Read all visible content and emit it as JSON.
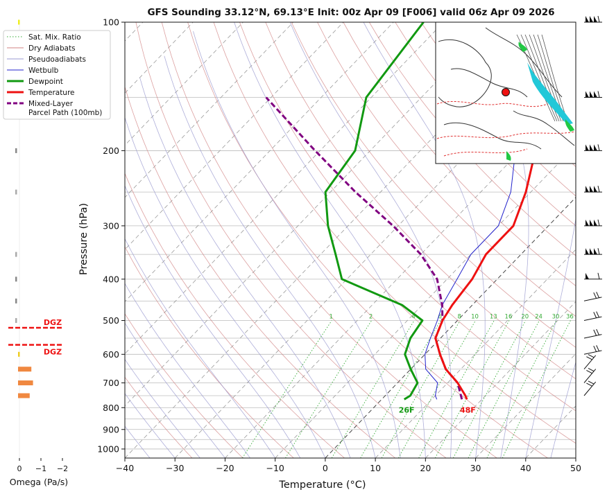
{
  "title": "GFS Sounding 33.12°N, 69.13°E Init: 00z Apr 09 [F006] valid 06z Apr 09 2026",
  "legend": {
    "sat_mix": "Sat. Mix. Ratio",
    "dry": "Dry Adiabats",
    "pseudo": "Pseudoadiabats",
    "wetbulb": "Wetbulb",
    "dewpoint": "Dewpoint",
    "temperature": "Temperature",
    "parcel_1": "Mixed-Layer",
    "parcel_2": "Parcel Path (100mb)"
  },
  "colors": {
    "temperature": "#ee1111",
    "dewpoint": "#119911",
    "wetbulb": "#2222cc",
    "parcel": "#800080",
    "dry_adiabat": "#d08080",
    "pseudoadiabat": "#9a9ad0",
    "mixing_ratio": "#33aa33",
    "dgz": "#ee1111"
  },
  "chart_data": {
    "type": "line",
    "title": "GFS Sounding 33.12°N, 69.13°E Init: 00z Apr 09 [F006] valid 06z Apr 09 2026",
    "xlabel": "Temperature (°C)",
    "ylabel": "Pressure (hPa)",
    "x_ticks": [
      "−40",
      "−30",
      "−20",
      "−10",
      "0",
      "10",
      "20",
      "30",
      "40",
      "50"
    ],
    "y_ticks": [
      "100",
      "200",
      "300",
      "400",
      "500",
      "600",
      "700",
      "800",
      "900",
      "1000"
    ],
    "xlim": [
      -40,
      50
    ],
    "ylim": [
      1050,
      100
    ],
    "y_scale": "log",
    "series": [
      {
        "name": "Temperature",
        "points": [
          [
            17,
            765
          ],
          [
            16,
            750
          ],
          [
            12,
            700
          ],
          [
            7,
            650
          ],
          [
            3,
            600
          ],
          [
            -1,
            550
          ],
          [
            -3,
            500
          ],
          [
            -4,
            460
          ],
          [
            -5,
            400
          ],
          [
            -7,
            350
          ],
          [
            -7,
            300
          ],
          [
            -11,
            250
          ],
          [
            -17,
            200
          ],
          [
            -28,
            150
          ],
          [
            -42,
            100
          ]
        ]
      },
      {
        "name": "Dewpoint",
        "points": [
          [
            4.5,
            765
          ],
          [
            5,
            750
          ],
          [
            4,
            700
          ],
          [
            0,
            650
          ],
          [
            -4,
            600
          ],
          [
            -6,
            550
          ],
          [
            -7,
            500
          ],
          [
            -14,
            460
          ],
          [
            -31,
            400
          ],
          [
            -37,
            350
          ],
          [
            -44,
            300
          ],
          [
            -51,
            250
          ],
          [
            -53,
            200
          ],
          [
            -61,
            150
          ],
          [
            -64,
            100
          ]
        ]
      },
      {
        "name": "Wetbulb",
        "points": [
          [
            11,
            765
          ],
          [
            10,
            750
          ],
          [
            8,
            700
          ],
          [
            3,
            650
          ],
          [
            0,
            600
          ],
          [
            -2,
            550
          ],
          [
            -4,
            500
          ],
          [
            -6,
            460
          ],
          [
            -8,
            400
          ],
          [
            -10,
            350
          ],
          [
            -10,
            300
          ],
          [
            -14,
            250
          ],
          [
            -21,
            200
          ],
          [
            -30,
            150
          ],
          [
            -43,
            100
          ]
        ]
      },
      {
        "name": "Mixed-Layer Parcel Path (100mb)",
        "points": [
          [
            16,
            765
          ],
          [
            12,
            700
          ],
          [
            7,
            650
          ],
          [
            3,
            600
          ],
          [
            -1,
            550
          ],
          [
            -3,
            500
          ],
          [
            -6,
            460
          ],
          [
            -12,
            400
          ],
          [
            -20,
            350
          ],
          [
            -31,
            300
          ],
          [
            -45,
            250
          ],
          [
            -61,
            200
          ],
          [
            -81,
            150
          ]
        ]
      }
    ],
    "surface_labels": {
      "temperature": "48F",
      "dewpoint": "26F"
    },
    "mixing_ratio_labels": [
      "1",
      "2",
      "4",
      "6",
      "8",
      "10",
      "13",
      "16",
      "20",
      "24",
      "30",
      "36"
    ],
    "mixing_ratio_values": [
      1,
      2,
      4,
      6,
      8,
      10,
      13,
      16,
      20,
      24,
      30,
      36
    ],
    "omega": {
      "xlabel": "Omega (Pa/s)",
      "x_ticks": [
        "0",
        "−1",
        "−2"
      ],
      "dgz_label": "DGZ",
      "dgz_bounds_hpa": [
        520,
        570
      ],
      "bars": [
        {
          "p": 100,
          "value": 0.05,
          "color": "#eeee22"
        },
        {
          "p": 200,
          "value": -0.1,
          "color": "#888888"
        },
        {
          "p": 250,
          "value": -0.03,
          "color": "#aaaaaa"
        },
        {
          "p": 350,
          "value": -0.03,
          "color": "#aaaaaa"
        },
        {
          "p": 400,
          "value": -0.1,
          "color": "#888888"
        },
        {
          "p": 450,
          "value": -0.1,
          "color": "#888888"
        },
        {
          "p": 500,
          "value": -0.05,
          "color": "#aaaaaa"
        },
        {
          "p": 600,
          "value": 0.1,
          "color": "#eecc22"
        },
        {
          "p": 650,
          "value": 0.8,
          "color": "#f08840"
        },
        {
          "p": 700,
          "value": 0.9,
          "color": "#f08840"
        },
        {
          "p": 750,
          "value": 0.7,
          "color": "#f08840"
        }
      ]
    },
    "wind_barb_levels": [
      100,
      150,
      200,
      250,
      300,
      350,
      400,
      450,
      500,
      550,
      600,
      650,
      700,
      750
    ]
  },
  "inset_map": {
    "description": "surface map",
    "marker_color": "#ee1111"
  }
}
